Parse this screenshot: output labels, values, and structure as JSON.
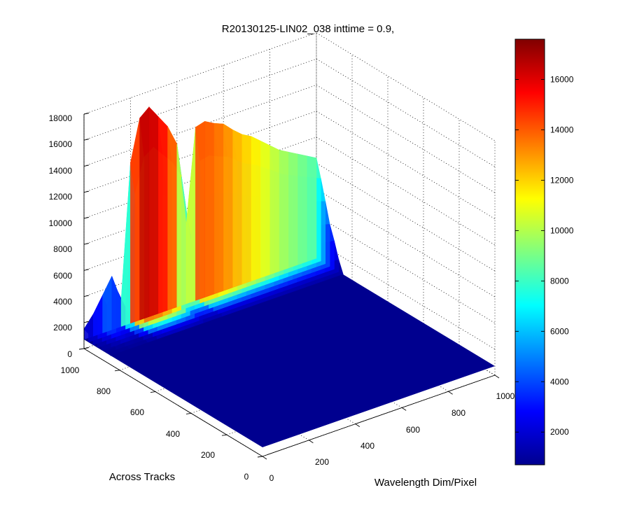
{
  "chart_data": {
    "type": "surface",
    "title": "R20130125-LIN02_038 inttime = 0.9,",
    "xlabel": "Wavelength Dim/Pixel",
    "ylabel": "Across Tracks",
    "zlabel": "",
    "x_ticks": [
      "0",
      "200",
      "400",
      "600",
      "800",
      "1000"
    ],
    "y_ticks": [
      "0",
      "200",
      "400",
      "600",
      "800",
      "1000"
    ],
    "z_ticks": [
      "0",
      "2000",
      "4000",
      "6000",
      "8000",
      "10000",
      "12000",
      "14000",
      "16000",
      "18000"
    ],
    "xlim": [
      0,
      1000
    ],
    "ylim": [
      0,
      1000
    ],
    "zlim": [
      0,
      18000
    ],
    "grid": true,
    "colormap": "jet",
    "colorbar": {
      "ticks": [
        "2000",
        "4000",
        "6000",
        "8000",
        "10000",
        "12000",
        "14000",
        "16000"
      ],
      "range": [
        700,
        17600
      ]
    },
    "surface_extent": {
      "x": [
        0,
        1000
      ],
      "y": [
        0,
        1000
      ]
    },
    "signal_region": {
      "x": [
        0,
        1000
      ],
      "y": [
        850,
        1000
      ],
      "baseline": 700,
      "peak": 17000
    },
    "profile_along_wavelength": {
      "x": [
        0,
        40,
        80,
        120,
        160,
        200,
        240,
        280,
        320,
        360,
        400,
        440,
        480,
        520,
        560,
        600,
        640,
        680,
        720,
        760,
        800,
        840,
        880,
        920,
        960,
        1000
      ],
      "value": [
        1500,
        2400,
        3600,
        4800,
        2700,
        13000,
        16200,
        16800,
        15800,
        14800,
        13200,
        6800,
        14000,
        14200,
        13800,
        13500,
        12800,
        12200,
        11800,
        11200,
        10600,
        10000,
        9600,
        9200,
        8800,
        8400
      ]
    },
    "across_track_bands": [
      {
        "y": 1000,
        "fraction": 1.0
      },
      {
        "y": 975,
        "fraction": 0.82
      },
      {
        "y": 950,
        "fraction": 0.62
      },
      {
        "y": 925,
        "fraction": 0.42
      },
      {
        "y": 900,
        "fraction": 0.28
      },
      {
        "y": 875,
        "fraction": 0.12
      },
      {
        "y": 850,
        "fraction": 0.0
      }
    ]
  }
}
